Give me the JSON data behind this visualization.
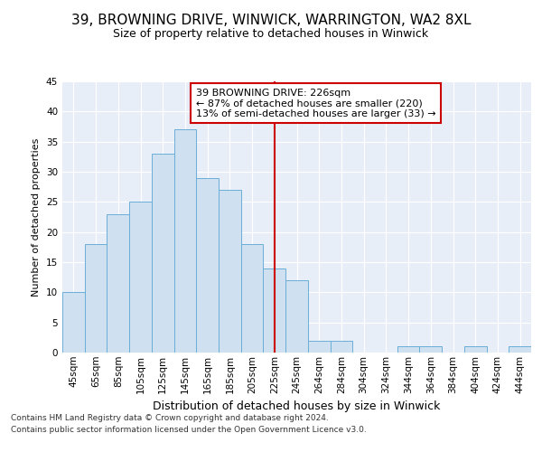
{
  "title1": "39, BROWNING DRIVE, WINWICK, WARRINGTON, WA2 8XL",
  "title2": "Size of property relative to detached houses in Winwick",
  "xlabel": "Distribution of detached houses by size in Winwick",
  "ylabel": "Number of detached properties",
  "categories": [
    "45sqm",
    "65sqm",
    "85sqm",
    "105sqm",
    "125sqm",
    "145sqm",
    "165sqm",
    "185sqm",
    "205sqm",
    "225sqm",
    "245sqm",
    "264sqm",
    "284sqm",
    "304sqm",
    "324sqm",
    "344sqm",
    "364sqm",
    "384sqm",
    "404sqm",
    "424sqm",
    "444sqm"
  ],
  "values": [
    10,
    18,
    23,
    25,
    33,
    37,
    29,
    27,
    18,
    14,
    12,
    2,
    2,
    0,
    0,
    1,
    1,
    0,
    1,
    0,
    1
  ],
  "bar_color": "#cfe0f0",
  "bar_edge_color": "#6aaed6",
  "vline_x_idx": 9,
  "vline_color": "#cc0000",
  "annotation_line1": "39 BROWNING DRIVE: 226sqm",
  "annotation_line2": "← 87% of detached houses are smaller (220)",
  "annotation_line3": "13% of semi-detached houses are larger (33) →",
  "annotation_box_color": "#cc0000",
  "plot_bg_color": "#e8eef8",
  "fig_bg_color": "#ffffff",
  "ylim": [
    0,
    45
  ],
  "yticks": [
    0,
    5,
    10,
    15,
    20,
    25,
    30,
    35,
    40,
    45
  ],
  "grid_color": "#ffffff",
  "title1_fontsize": 11,
  "title2_fontsize": 9,
  "ylabel_fontsize": 8,
  "xlabel_fontsize": 9,
  "tick_fontsize": 7.5,
  "footer1": "Contains HM Land Registry data © Crown copyright and database right 2024.",
  "footer2": "Contains public sector information licensed under the Open Government Licence v3.0.",
  "footer_fontsize": 6.5
}
